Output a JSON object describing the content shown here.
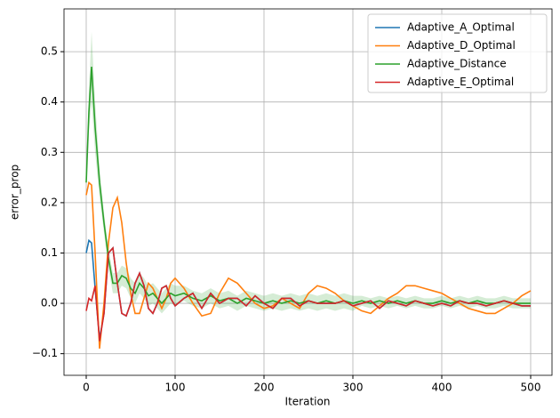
{
  "chart_data": {
    "type": "line",
    "xlabel": "Iteration",
    "ylabel": "error_prop",
    "x": [
      0,
      3,
      6,
      10,
      15,
      20,
      25,
      30,
      35,
      40,
      45,
      50,
      55,
      60,
      65,
      70,
      75,
      80,
      85,
      90,
      95,
      100,
      110,
      120,
      130,
      140,
      150,
      160,
      170,
      180,
      190,
      200,
      210,
      220,
      230,
      240,
      250,
      260,
      270,
      280,
      290,
      300,
      310,
      320,
      330,
      340,
      350,
      360,
      370,
      380,
      390,
      400,
      410,
      420,
      430,
      440,
      450,
      460,
      470,
      480,
      490,
      500
    ],
    "series": [
      {
        "name": "Adaptive_A_Optimal",
        "color": "#1f77b4",
        "values": [
          0.1,
          0.125,
          0.12,
          0.03,
          -0.07,
          -0.02,
          0.1,
          0.11,
          0.04,
          -0.02,
          -0.025,
          0.0,
          0.04,
          0.06,
          0.035,
          -0.01,
          -0.02,
          0.0,
          0.03,
          0.035,
          0.01,
          -0.005,
          0.01,
          0.02,
          -0.01,
          0.02,
          0.0,
          0.01,
          0.01,
          -0.005,
          0.015,
          0.0,
          -0.01,
          0.01,
          0.01,
          -0.005,
          0.005,
          0.0,
          0.0,
          0.0,
          0.005,
          -0.005,
          0.0,
          0.005,
          -0.01,
          0.005,
          0.0,
          -0.005,
          0.005,
          0.0,
          -0.005,
          0.0,
          -0.005,
          0.005,
          0.0,
          0.0,
          -0.005,
          0.0,
          0.005,
          0.0,
          -0.005,
          -0.005
        ]
      },
      {
        "name": "Adaptive_D_Optimal",
        "color": "#ff7f0e",
        "values": [
          0.215,
          0.24,
          0.235,
          0.1,
          -0.09,
          0.0,
          0.12,
          0.19,
          0.21,
          0.16,
          0.08,
          0.02,
          -0.02,
          -0.02,
          0.01,
          0.04,
          0.03,
          0.01,
          -0.01,
          0.01,
          0.04,
          0.05,
          0.03,
          0.0,
          -0.025,
          -0.02,
          0.02,
          0.05,
          0.04,
          0.02,
          0.0,
          -0.01,
          -0.005,
          0.01,
          0.0,
          -0.01,
          0.02,
          0.035,
          0.03,
          0.02,
          0.005,
          -0.005,
          -0.015,
          -0.02,
          -0.005,
          0.01,
          0.02,
          0.035,
          0.035,
          0.03,
          0.025,
          0.02,
          0.01,
          0.0,
          -0.01,
          -0.015,
          -0.02,
          -0.02,
          -0.01,
          0.0,
          0.015,
          0.025
        ]
      },
      {
        "name": "Adaptive_Distance",
        "color": "#2ca02c",
        "values": [
          0.24,
          0.38,
          0.47,
          0.35,
          0.24,
          0.16,
          0.09,
          0.04,
          0.04,
          0.055,
          0.05,
          0.03,
          0.02,
          0.04,
          0.03,
          0.015,
          0.02,
          0.01,
          0.0,
          0.01,
          0.02,
          0.015,
          0.02,
          0.01,
          0.005,
          0.015,
          0.005,
          0.01,
          0.0,
          0.01,
          0.005,
          0.0,
          0.005,
          0.0,
          0.005,
          0.0,
          0.005,
          0.0,
          0.005,
          0.0,
          0.005,
          0.0,
          0.005,
          0.0,
          0.005,
          0.0,
          0.005,
          0.0,
          0.005,
          0.0,
          0.0,
          0.005,
          0.0,
          0.005,
          0.0,
          0.005,
          0.0,
          0.0,
          0.005,
          0.0,
          0.0,
          0.0
        ],
        "errors": [
          0.005,
          0.04,
          0.07,
          0.05,
          0.03,
          0.02,
          0.02,
          0.02,
          0.02,
          0.02,
          0.02,
          0.02,
          0.02,
          0.02,
          0.02,
          0.02,
          0.02,
          0.02,
          0.02,
          0.02,
          0.02,
          0.02,
          0.015,
          0.015,
          0.015,
          0.015,
          0.015,
          0.015,
          0.015,
          0.015,
          0.015,
          0.015,
          0.015,
          0.015,
          0.015,
          0.015,
          0.015,
          0.015,
          0.015,
          0.015,
          0.015,
          0.015,
          0.01,
          0.01,
          0.01,
          0.01,
          0.01,
          0.01,
          0.01,
          0.01,
          0.01,
          0.01,
          0.01,
          0.01,
          0.01,
          0.01,
          0.01,
          0.01,
          0.01,
          0.01,
          0.01,
          0.01
        ]
      },
      {
        "name": "Adaptive_E_Optimal",
        "color": "#d62728",
        "values": [
          -0.015,
          0.01,
          0.005,
          0.035,
          -0.075,
          -0.02,
          0.1,
          0.11,
          0.04,
          -0.02,
          -0.025,
          0.0,
          0.04,
          0.06,
          0.035,
          -0.01,
          -0.02,
          0.0,
          0.03,
          0.035,
          0.01,
          -0.005,
          0.01,
          0.02,
          -0.01,
          0.02,
          0.0,
          0.01,
          0.01,
          -0.005,
          0.015,
          0.0,
          -0.01,
          0.01,
          0.01,
          -0.005,
          0.005,
          0.0,
          0.0,
          0.0,
          0.005,
          -0.005,
          0.0,
          0.005,
          -0.01,
          0.005,
          0.0,
          -0.005,
          0.005,
          0.0,
          -0.005,
          0.0,
          -0.005,
          0.005,
          0.0,
          0.0,
          -0.005,
          0.0,
          0.005,
          0.0,
          -0.005,
          -0.005
        ]
      }
    ],
    "xlim": [
      -25,
      524
    ],
    "ylim": [
      -0.143,
      0.585
    ],
    "xticks": [
      0,
      100,
      200,
      300,
      400,
      500
    ],
    "yticks": [
      {
        "value": -0.1,
        "label": "−0.1"
      },
      {
        "value": 0,
        "label": "0.0"
      },
      0.1,
      0.2,
      0.3,
      0.4,
      0.5
    ],
    "grid": true,
    "legend": "upper right"
  }
}
